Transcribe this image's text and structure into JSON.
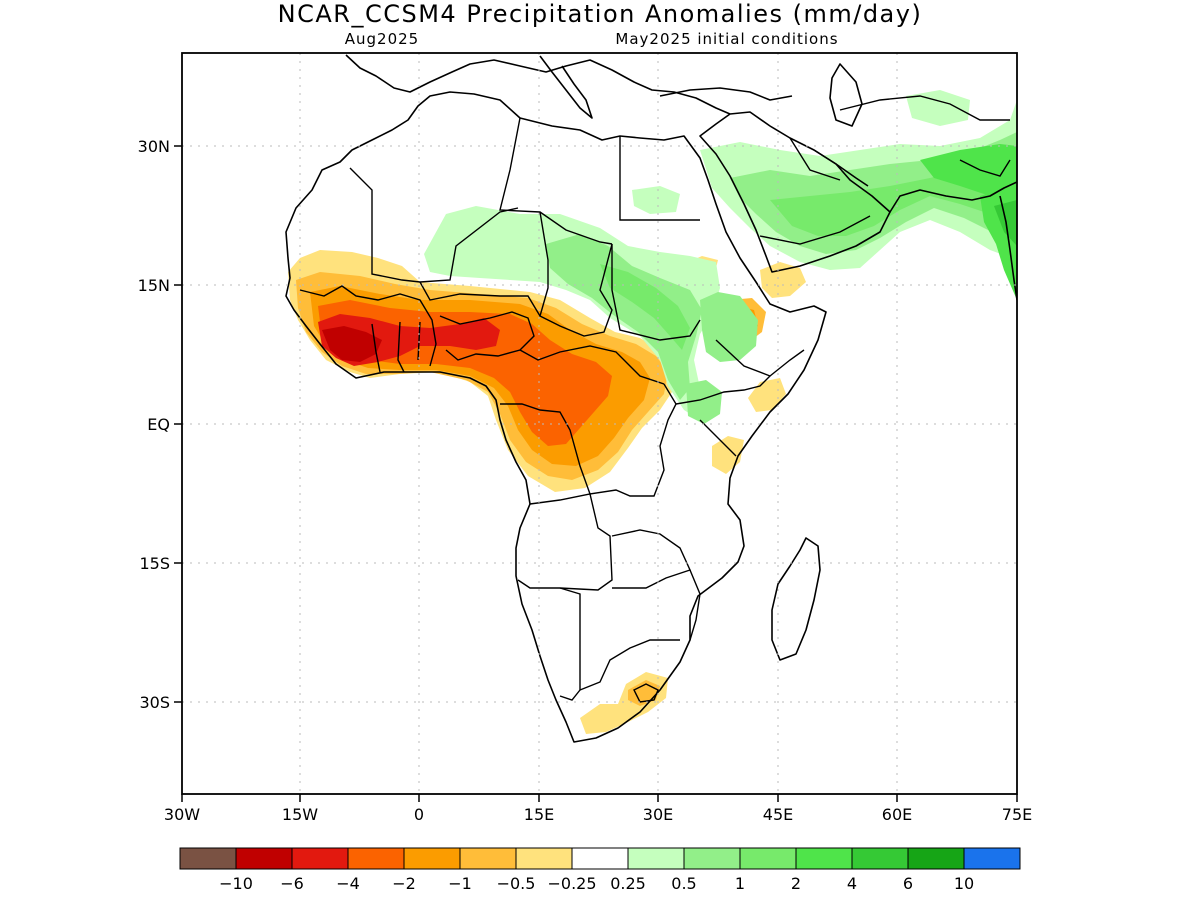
{
  "title": "NCAR_CCSM4 Precipitation Anomalies (mm/day)",
  "subtitle_left": "Aug2025",
  "subtitle_right": "May2025 initial conditions",
  "lat_labels": [
    "30N",
    "15N",
    "EQ",
    "15S",
    "30S"
  ],
  "lon_labels": [
    "30W",
    "15W",
    "0",
    "15E",
    "30E",
    "45E",
    "60E",
    "75E"
  ],
  "colorbar": {
    "colors": [
      "#7a5243",
      "#c00000",
      "#e2190f",
      "#fb6300",
      "#fb9c00",
      "#ffbd39",
      "#ffe27d",
      "#ffffff",
      "#c5ffbe",
      "#92ef89",
      "#77ea6b",
      "#4fe44a",
      "#35c935",
      "#16a516",
      "#1a73ec"
    ],
    "labels": [
      "-10",
      "-6",
      "-4",
      "-2",
      "-1",
      "-0.5",
      "-0.25",
      "0.25",
      "0.5",
      "1",
      "2",
      "4",
      "6",
      "10"
    ]
  }
}
